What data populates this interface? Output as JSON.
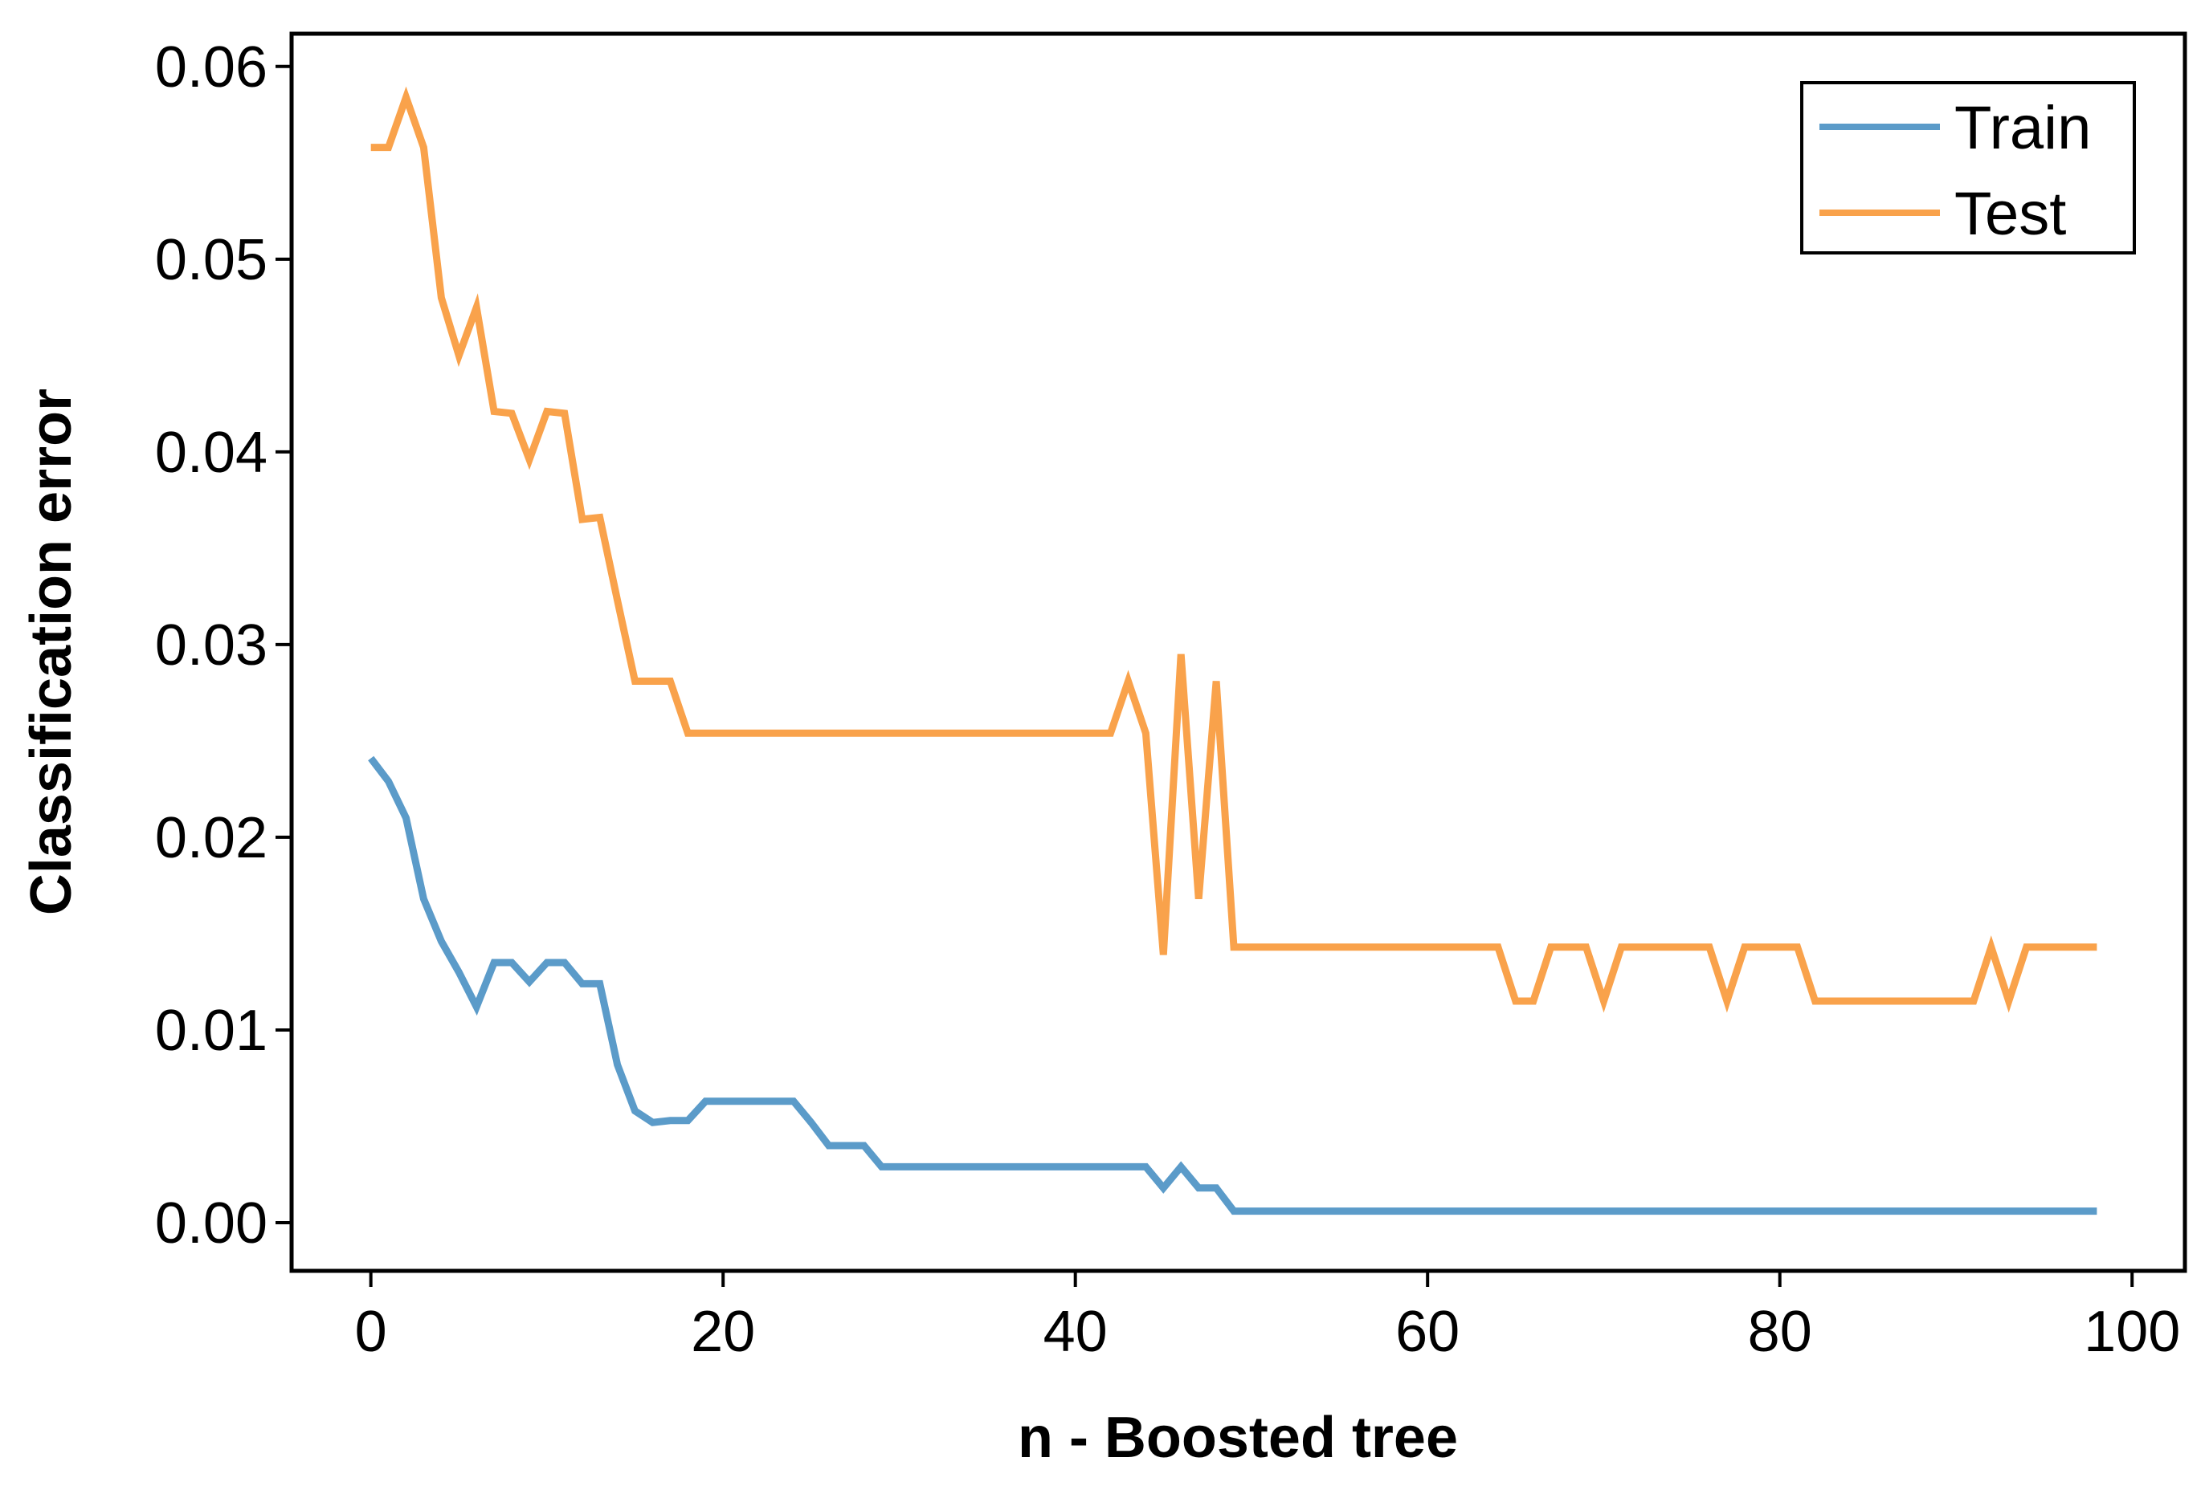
{
  "chart_data": {
    "type": "line",
    "title": "",
    "xlabel": "n - Boosted tree",
    "ylabel": "Classification error",
    "xlim": [
      -4.5,
      103
    ],
    "ylim": [
      -0.0025,
      0.0617
    ],
    "xticks": [
      0,
      20,
      40,
      60,
      80,
      100
    ],
    "xtick_labels": [
      "0",
      "20",
      "40",
      "60",
      "80",
      "100"
    ],
    "yticks": [
      0.0,
      0.01,
      0.02,
      0.03,
      0.04,
      0.05,
      0.06
    ],
    "ytick_labels": [
      "0.00",
      "0.01",
      "0.02",
      "0.03",
      "0.04",
      "0.05",
      "0.06"
    ],
    "grid": false,
    "legend_position": "top-right",
    "series": [
      {
        "name": "Train",
        "color": "#5b9bc9",
        "x": [
          0,
          1,
          2,
          3,
          4,
          5,
          6,
          7,
          8,
          9,
          10,
          11,
          12,
          13,
          14,
          15,
          16,
          17,
          18,
          19,
          20,
          21,
          22,
          23,
          24,
          25,
          26,
          27,
          28,
          29,
          30,
          31,
          32,
          33,
          34,
          35,
          36,
          37,
          38,
          39,
          40,
          41,
          42,
          43,
          44,
          45,
          46,
          47,
          48,
          49,
          50,
          51,
          52,
          53,
          54,
          55,
          56,
          57,
          58,
          59,
          60,
          61,
          62,
          63,
          64,
          65,
          66,
          67,
          68,
          69,
          70,
          71,
          72,
          73,
          74,
          75,
          76,
          77,
          78,
          79,
          80,
          81,
          82,
          83,
          84,
          85,
          86,
          87,
          88,
          89,
          90,
          91,
          92,
          93,
          94,
          95,
          96,
          97,
          98
        ],
        "y": [
          0.0241,
          0.0229,
          0.021,
          0.0168,
          0.0146,
          0.013,
          0.0112,
          0.0135,
          0.0135,
          0.0125,
          0.0135,
          0.0135,
          0.0124,
          0.0124,
          0.0082,
          0.0058,
          0.0052,
          0.0053,
          0.0053,
          0.0063,
          0.0063,
          0.0063,
          0.0063,
          0.0063,
          0.0063,
          0.0052,
          0.004,
          0.004,
          0.004,
          0.0029,
          0.0029,
          0.0029,
          0.0029,
          0.0029,
          0.0029,
          0.0029,
          0.0029,
          0.0029,
          0.0029,
          0.0029,
          0.0029,
          0.0029,
          0.0029,
          0.0029,
          0.0029,
          0.0018,
          0.0029,
          0.0018,
          0.0018,
          0.0006,
          0.0006,
          0.0006,
          0.0006,
          0.0006,
          0.0006,
          0.0006,
          0.0006,
          0.0006,
          0.0006,
          0.0006,
          0.0006,
          0.0006,
          0.0006,
          0.0006,
          0.0006,
          0.0006,
          0.0006,
          0.0006,
          0.0006,
          0.0006,
          0.0006,
          0.0006,
          0.0006,
          0.0006,
          0.0006,
          0.0006,
          0.0006,
          0.0006,
          0.0006,
          0.0006,
          0.0006,
          0.0006,
          0.0006,
          0.0006,
          0.0006,
          0.0006,
          0.0006,
          0.0006,
          0.0006,
          0.0006,
          0.0006,
          0.0006,
          0.0006,
          0.0006,
          0.0006,
          0.0006,
          0.0006,
          0.0006,
          0.0006
        ]
      },
      {
        "name": "Test",
        "color": "#f9a24b",
        "x": [
          0,
          1,
          2,
          3,
          4,
          5,
          6,
          7,
          8,
          9,
          10,
          11,
          12,
          13,
          14,
          15,
          16,
          17,
          18,
          19,
          20,
          21,
          22,
          23,
          24,
          25,
          26,
          27,
          28,
          29,
          30,
          31,
          32,
          33,
          34,
          35,
          36,
          37,
          38,
          39,
          40,
          41,
          42,
          43,
          44,
          45,
          46,
          47,
          48,
          49,
          50,
          51,
          52,
          53,
          54,
          55,
          56,
          57,
          58,
          59,
          60,
          61,
          62,
          63,
          64,
          65,
          66,
          67,
          68,
          69,
          70,
          71,
          72,
          73,
          74,
          75,
          76,
          77,
          78,
          79,
          80,
          81,
          82,
          83,
          84,
          85,
          86,
          87,
          88,
          89,
          90,
          91,
          92,
          93,
          94,
          95,
          96,
          97,
          98
        ],
        "y": [
          0.0558,
          0.0558,
          0.0584,
          0.0558,
          0.048,
          0.045,
          0.0475,
          0.0421,
          0.042,
          0.0396,
          0.0421,
          0.042,
          0.0365,
          0.0366,
          0.0323,
          0.0281,
          0.0281,
          0.0281,
          0.0254,
          0.0254,
          0.0254,
          0.0254,
          0.0254,
          0.0254,
          0.0254,
          0.0254,
          0.0254,
          0.0254,
          0.0254,
          0.0254,
          0.0254,
          0.0254,
          0.0254,
          0.0254,
          0.0254,
          0.0254,
          0.0254,
          0.0254,
          0.0254,
          0.0254,
          0.0254,
          0.0254,
          0.0254,
          0.0281,
          0.0254,
          0.0139,
          0.0295,
          0.0168,
          0.0281,
          0.0143,
          0.0143,
          0.0143,
          0.0143,
          0.0143,
          0.0143,
          0.0143,
          0.0143,
          0.0143,
          0.0143,
          0.0143,
          0.0143,
          0.0143,
          0.0143,
          0.0143,
          0.0143,
          0.0115,
          0.0115,
          0.0143,
          0.0143,
          0.0143,
          0.0115,
          0.0143,
          0.0143,
          0.0143,
          0.0143,
          0.0143,
          0.0143,
          0.0115,
          0.0143,
          0.0143,
          0.0143,
          0.0143,
          0.0115,
          0.0115,
          0.0115,
          0.0115,
          0.0115,
          0.0115,
          0.0115,
          0.0115,
          0.0115,
          0.0115,
          0.0143,
          0.0115,
          0.0143,
          0.0143,
          0.0143,
          0.0143,
          0.0143
        ]
      }
    ]
  }
}
